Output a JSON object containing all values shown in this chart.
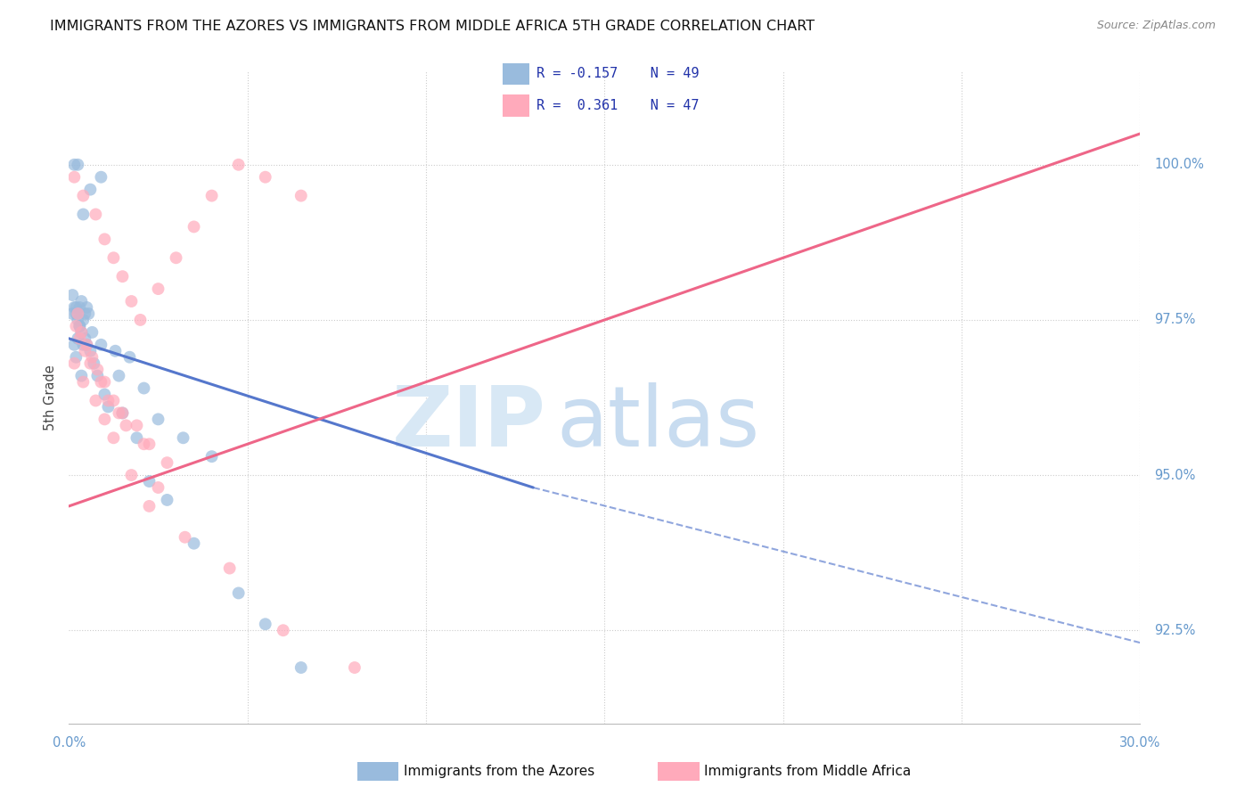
{
  "title": "IMMIGRANTS FROM THE AZORES VS IMMIGRANTS FROM MIDDLE AFRICA 5TH GRADE CORRELATION CHART",
  "source": "Source: ZipAtlas.com",
  "ylabel": "5th Grade",
  "y_ticks": [
    92.5,
    95.0,
    97.5,
    100.0
  ],
  "y_tick_labels": [
    "92.5%",
    "95.0%",
    "97.5%",
    "100.0%"
  ],
  "x_range": [
    0.0,
    30.0
  ],
  "y_range": [
    91.0,
    101.5
  ],
  "legend_blue_r": "-0.157",
  "legend_blue_n": "49",
  "legend_pink_r": "0.361",
  "legend_pink_n": "47",
  "color_blue": "#99BBDD",
  "color_blue_line": "#5577CC",
  "color_pink": "#FFAABB",
  "color_pink_line": "#EE6688",
  "blue_line_x0": 0.0,
  "blue_line_y0": 97.2,
  "blue_line_x1": 13.0,
  "blue_line_y1": 94.8,
  "blue_dash_x0": 13.0,
  "blue_dash_y0": 94.8,
  "blue_dash_x1": 30.0,
  "blue_dash_y1": 92.3,
  "pink_line_x0": 0.0,
  "pink_line_y0": 94.5,
  "pink_line_x1": 30.0,
  "pink_line_y1": 100.5,
  "blue_scatter_x": [
    0.15,
    0.6,
    0.4,
    0.9,
    0.25,
    0.1,
    0.2,
    0.35,
    0.3,
    0.45,
    0.5,
    0.55,
    0.15,
    0.25,
    0.3,
    0.4,
    0.65,
    0.2,
    0.35,
    0.9,
    1.3,
    1.4,
    1.7,
    2.1,
    2.5,
    3.2,
    4.0,
    0.1,
    0.15,
    0.2,
    0.25,
    0.3,
    0.35,
    0.4,
    0.45,
    0.5,
    0.6,
    0.7,
    0.8,
    1.0,
    1.1,
    1.5,
    1.9,
    2.25,
    2.75,
    3.5,
    4.75,
    5.5,
    6.5
  ],
  "blue_scatter_y": [
    100.0,
    99.6,
    99.2,
    99.8,
    100.0,
    97.6,
    97.7,
    97.8,
    97.7,
    97.6,
    97.7,
    97.6,
    97.1,
    97.2,
    97.4,
    97.5,
    97.3,
    96.9,
    96.6,
    97.1,
    97.0,
    96.6,
    96.9,
    96.4,
    95.9,
    95.6,
    95.3,
    97.9,
    97.7,
    97.6,
    97.5,
    97.4,
    97.3,
    97.1,
    97.2,
    97.1,
    97.0,
    96.8,
    96.6,
    96.3,
    96.1,
    96.0,
    95.6,
    94.9,
    94.6,
    93.9,
    93.1,
    92.6,
    91.9
  ],
  "pink_scatter_x": [
    0.15,
    0.4,
    0.75,
    1.0,
    1.25,
    1.5,
    1.75,
    2.0,
    2.5,
    3.0,
    3.5,
    4.0,
    4.75,
    5.5,
    6.5,
    0.2,
    0.3,
    0.45,
    0.6,
    0.9,
    1.1,
    1.4,
    1.6,
    2.25,
    2.75,
    0.25,
    0.35,
    0.5,
    0.65,
    0.8,
    1.0,
    1.25,
    1.5,
    1.9,
    2.1,
    0.15,
    0.4,
    0.75,
    1.0,
    1.25,
    1.75,
    2.25,
    2.5,
    3.25,
    4.5,
    6.0,
    8.0
  ],
  "pink_scatter_y": [
    99.8,
    99.5,
    99.2,
    98.8,
    98.5,
    98.2,
    97.8,
    97.5,
    98.0,
    98.5,
    99.0,
    99.5,
    100.0,
    99.8,
    99.5,
    97.4,
    97.2,
    97.0,
    96.8,
    96.5,
    96.2,
    96.0,
    95.8,
    95.5,
    95.2,
    97.6,
    97.3,
    97.1,
    96.9,
    96.7,
    96.5,
    96.2,
    96.0,
    95.8,
    95.5,
    96.8,
    96.5,
    96.2,
    95.9,
    95.6,
    95.0,
    94.5,
    94.8,
    94.0,
    93.5,
    92.5,
    91.9
  ]
}
